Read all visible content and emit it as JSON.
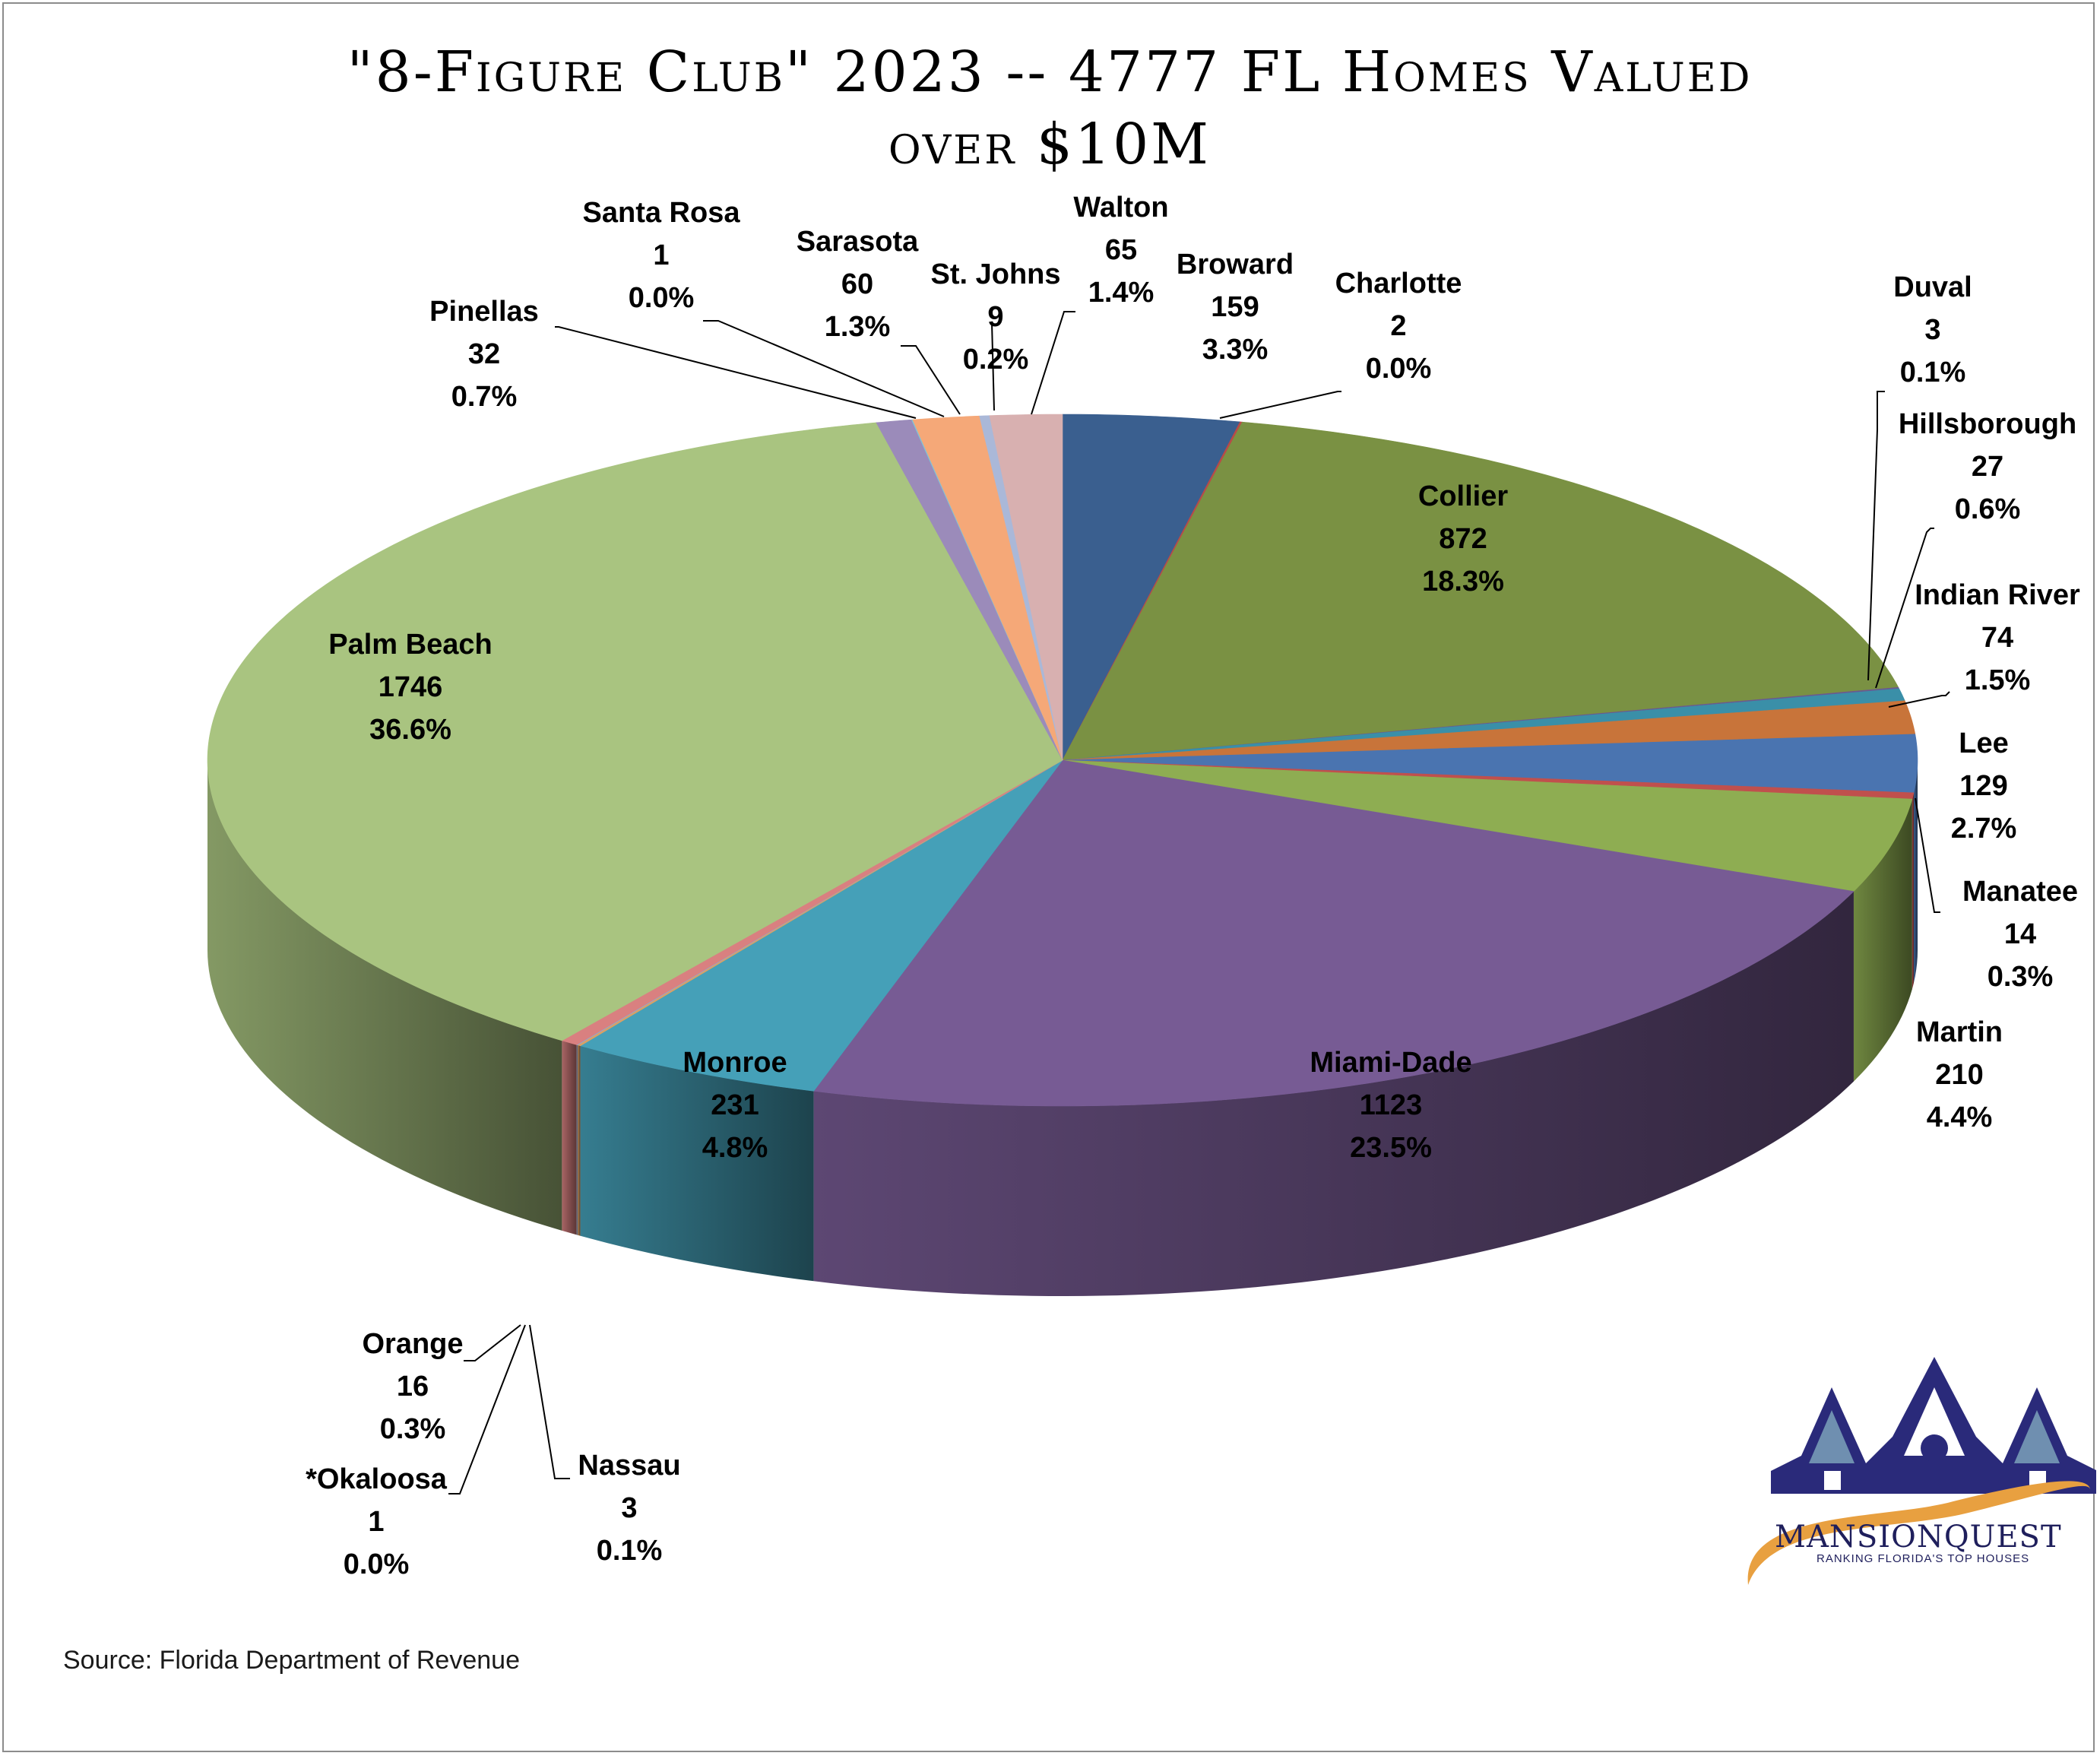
{
  "chart_data": {
    "type": "pie",
    "title_lines": [
      "\"8-Figure Club\" 2023 -- 4777 FL Homes Valued",
      "over $10M"
    ],
    "source": "Source: Florida Department of Revenue",
    "slices": [
      {
        "label": "Broward",
        "value": 159,
        "percent": "3.3%",
        "color": "#3a5f8f"
      },
      {
        "label": "Charlotte",
        "value": 2,
        "percent": "0.0%",
        "color": "#b94a48"
      },
      {
        "label": "Collier",
        "value": 872,
        "percent": "18.3%",
        "color": "#7a9143"
      },
      {
        "label": "Duval",
        "value": 3,
        "percent": "0.1%",
        "color": "#6a5a8f"
      },
      {
        "label": "Hillsborough",
        "value": 27,
        "percent": "0.6%",
        "color": "#3a8fa8"
      },
      {
        "label": "Indian River",
        "value": 74,
        "percent": "1.5%",
        "color": "#c8743a"
      },
      {
        "label": "Lee",
        "value": 129,
        "percent": "2.7%",
        "color": "#4a74b0"
      },
      {
        "label": "Manatee",
        "value": 14,
        "percent": "0.3%",
        "color": "#c0504d"
      },
      {
        "label": "Martin",
        "value": 210,
        "percent": "4.4%",
        "color": "#8ead52"
      },
      {
        "label": "Miami-Dade",
        "value": 1123,
        "percent": "23.5%",
        "color": "#775b94"
      },
      {
        "label": "Monroe",
        "value": 231,
        "percent": "4.8%",
        "color": "#45a0b8"
      },
      {
        "label": "Nassau",
        "value": 3,
        "percent": "0.1%",
        "color": "#d9a066"
      },
      {
        "label": "*Okaloosa",
        "value": 1,
        "percent": "0.0%",
        "color": "#8aa8d8"
      },
      {
        "label": "Orange",
        "value": 16,
        "percent": "0.3%",
        "color": "#d98080"
      },
      {
        "label": "Palm Beach",
        "value": 1746,
        "percent": "36.6%",
        "color": "#a9c480"
      },
      {
        "label": "Pinellas",
        "value": 32,
        "percent": "0.7%",
        "color": "#9b8bba"
      },
      {
        "label": "Santa Rosa",
        "value": 1,
        "percent": "0.0%",
        "color": "#7fc4d8"
      },
      {
        "label": "Sarasota",
        "value": 60,
        "percent": "1.3%",
        "color": "#f5a878"
      },
      {
        "label": "St. Johns",
        "value": 9,
        "percent": "0.2%",
        "color": "#aab8d8"
      },
      {
        "label": "Walton",
        "value": 65,
        "percent": "1.4%",
        "color": "#d8b0b0"
      }
    ]
  },
  "logo": {
    "name": "MANSIONQUEST",
    "tagline": "RANKING FLORIDA'S TOP HOUSES",
    "color": "#2a2a7a",
    "accent": "#e8a040"
  }
}
